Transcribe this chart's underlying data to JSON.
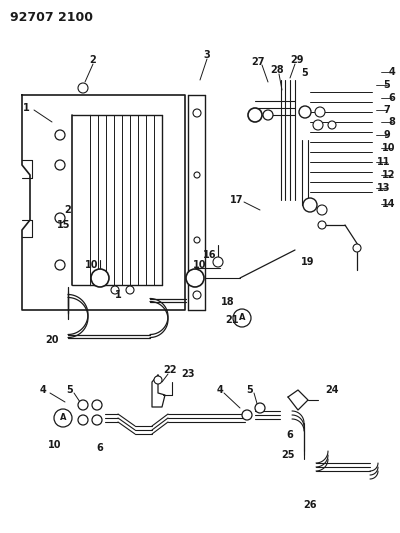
{
  "title": "92707 2100",
  "bg": "#ffffff",
  "lc": "#1a1a1a",
  "fs": 7.0,
  "fw": 4.0,
  "fh": 5.33,
  "dpi": 100
}
